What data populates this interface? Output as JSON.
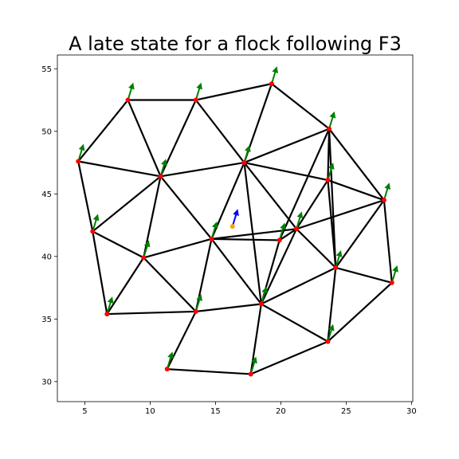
{
  "chart_data": {
    "type": "scatter",
    "title": "A late state for a flock following F3",
    "xlabel": "",
    "ylabel": "",
    "xlim": [
      2.9,
      30.1
    ],
    "ylim": [
      28.4,
      56.1
    ],
    "xticks": [
      5,
      10,
      15,
      20,
      25,
      30
    ],
    "yticks": [
      30,
      35,
      40,
      45,
      50,
      55
    ],
    "grid": false,
    "colors": {
      "agent": "#ff0000",
      "edge": "#000000",
      "velocity": "#008000",
      "leader": "#ffa500",
      "leader_velocity": "#0000ff"
    },
    "agents": [
      {
        "x": 4.5,
        "y": 47.6
      },
      {
        "x": 8.3,
        "y": 52.5
      },
      {
        "x": 13.5,
        "y": 52.5
      },
      {
        "x": 19.3,
        "y": 53.8
      },
      {
        "x": 10.8,
        "y": 46.4
      },
      {
        "x": 17.2,
        "y": 47.5
      },
      {
        "x": 23.7,
        "y": 50.2
      },
      {
        "x": 23.6,
        "y": 46.1
      },
      {
        "x": 27.9,
        "y": 44.5
      },
      {
        "x": 5.6,
        "y": 42.0
      },
      {
        "x": 14.7,
        "y": 41.4
      },
      {
        "x": 19.9,
        "y": 41.3
      },
      {
        "x": 21.2,
        "y": 42.2
      },
      {
        "x": 9.5,
        "y": 39.9
      },
      {
        "x": 24.2,
        "y": 39.1
      },
      {
        "x": 28.5,
        "y": 37.9
      },
      {
        "x": 6.7,
        "y": 35.4
      },
      {
        "x": 13.5,
        "y": 35.6
      },
      {
        "x": 18.5,
        "y": 36.2
      },
      {
        "x": 23.6,
        "y": 33.2
      },
      {
        "x": 11.3,
        "y": 31.0
      },
      {
        "x": 17.7,
        "y": 30.6
      }
    ],
    "agent_velocity": {
      "dx": 0.35,
      "dy": 1.2
    },
    "edges": [
      [
        0,
        1
      ],
      [
        0,
        4
      ],
      [
        0,
        9
      ],
      [
        1,
        2
      ],
      [
        1,
        4
      ],
      [
        2,
        3
      ],
      [
        2,
        4
      ],
      [
        2,
        5
      ],
      [
        3,
        5
      ],
      [
        3,
        6
      ],
      [
        4,
        5
      ],
      [
        4,
        9
      ],
      [
        4,
        10
      ],
      [
        4,
        13
      ],
      [
        5,
        6
      ],
      [
        5,
        7
      ],
      [
        5,
        10
      ],
      [
        5,
        12
      ],
      [
        5,
        18
      ],
      [
        6,
        7
      ],
      [
        6,
        8
      ],
      [
        6,
        14
      ],
      [
        6,
        11
      ],
      [
        7,
        8
      ],
      [
        7,
        12
      ],
      [
        7,
        14
      ],
      [
        8,
        14
      ],
      [
        8,
        15
      ],
      [
        8,
        12
      ],
      [
        9,
        13
      ],
      [
        9,
        16
      ],
      [
        10,
        11
      ],
      [
        10,
        12
      ],
      [
        10,
        13
      ],
      [
        10,
        17
      ],
      [
        10,
        18
      ],
      [
        11,
        12
      ],
      [
        11,
        18
      ],
      [
        12,
        14
      ],
      [
        12,
        18
      ],
      [
        13,
        16
      ],
      [
        13,
        17
      ],
      [
        14,
        15
      ],
      [
        14,
        18
      ],
      [
        14,
        19
      ],
      [
        15,
        19
      ],
      [
        16,
        17
      ],
      [
        17,
        18
      ],
      [
        17,
        20
      ],
      [
        18,
        19
      ],
      [
        18,
        21
      ],
      [
        19,
        21
      ],
      [
        20,
        21
      ]
    ],
    "leader": {
      "x": 16.3,
      "y": 42.4,
      "dx": 0.35,
      "dy": 1.2
    }
  }
}
